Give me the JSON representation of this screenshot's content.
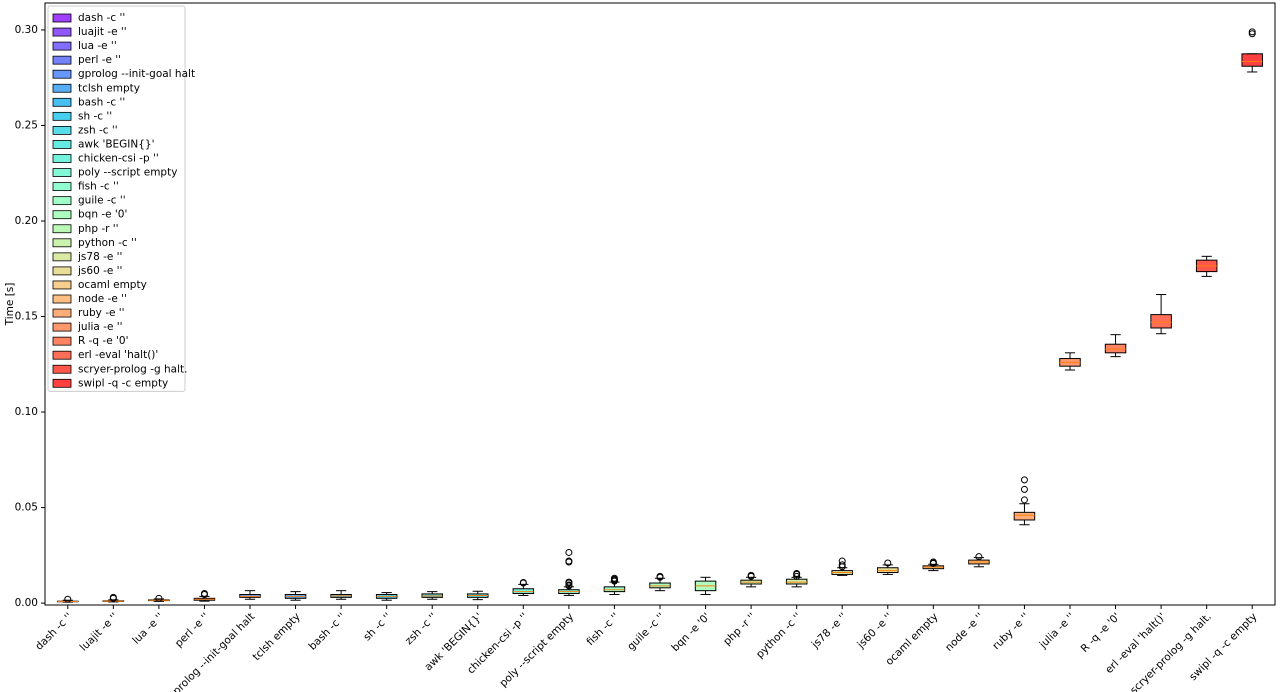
{
  "chart_data": {
    "type": "boxplot",
    "y_label": "Time [s]",
    "ylim": [
      -0.001,
      0.3141
    ],
    "yticks": [
      {
        "value": 0,
        "label": "0.00"
      },
      {
        "value": 0.05,
        "label": "0.05"
      },
      {
        "value": 0.1,
        "label": "0.10"
      },
      {
        "value": 0.15,
        "label": "0.15"
      },
      {
        "value": 0.2,
        "label": "0.20"
      },
      {
        "value": 0.25,
        "label": "0.25"
      },
      {
        "value": 0.3,
        "label": "0.30"
      }
    ],
    "legend": "upper left",
    "median_color": "#ff7f0e",
    "series": [
      {
        "name": "dash -c ''",
        "color": "#8000ff",
        "whislo": 0.0005,
        "q1": 0.0007,
        "med": 0.0008,
        "q3": 0.001,
        "whishi": 0.0015,
        "fliers": [
          0.002
        ]
      },
      {
        "name": "luajit -e ''",
        "color": "#6c1fff",
        "whislo": 0.0006,
        "q1": 0.0009,
        "med": 0.001,
        "q3": 0.0012,
        "whishi": 0.0017,
        "fliers": [
          0.0025,
          0.003
        ]
      },
      {
        "name": "lua -e ''",
        "color": "#583dfd",
        "whislo": 0.0009,
        "q1": 0.0013,
        "med": 0.0015,
        "q3": 0.0017,
        "whishi": 0.0022,
        "fliers": [
          0.0025
        ]
      },
      {
        "name": "perl -e ''",
        "color": "#445af9",
        "whislo": 0.001,
        "q1": 0.0015,
        "med": 0.002,
        "q3": 0.0025,
        "whishi": 0.0035,
        "fliers": [
          0.0045,
          0.005
        ]
      },
      {
        "name": "gprolog --init-goal halt",
        "color": "#3176f8",
        "whislo": 0.002,
        "q1": 0.003,
        "med": 0.0035,
        "q3": 0.0045,
        "whishi": 0.0065,
        "fliers": []
      },
      {
        "name": "tclsh empty",
        "color": "#1d91f3",
        "whislo": 0.0015,
        "q1": 0.0025,
        "med": 0.0035,
        "q3": 0.0045,
        "whishi": 0.006,
        "fliers": []
      },
      {
        "name": "bash -c ''",
        "color": "#0aa9ee",
        "whislo": 0.002,
        "q1": 0.003,
        "med": 0.0038,
        "q3": 0.0045,
        "whishi": 0.0065,
        "fliers": []
      },
      {
        "name": "sh -c ''",
        "color": "#0abfe8",
        "whislo": 0.0015,
        "q1": 0.0025,
        "med": 0.0035,
        "q3": 0.0045,
        "whishi": 0.0055,
        "fliers": []
      },
      {
        "name": "zsh -c ''",
        "color": "#1dd2e2",
        "whislo": 0.002,
        "q1": 0.003,
        "med": 0.0038,
        "q3": 0.0048,
        "whishi": 0.006,
        "fliers": []
      },
      {
        "name": "awk 'BEGIN{}'",
        "color": "#31e2da",
        "whislo": 0.0018,
        "q1": 0.003,
        "med": 0.004,
        "q3": 0.0048,
        "whishi": 0.0062,
        "fliers": []
      },
      {
        "name": "chicken-csi -p ''",
        "color": "#44eed2",
        "whislo": 0.004,
        "q1": 0.005,
        "med": 0.006,
        "q3": 0.0075,
        "whishi": 0.0098,
        "fliers": [
          0.0105,
          0.0108
        ]
      },
      {
        "name": "poly --script empty",
        "color": "#58f7c9",
        "whislo": 0.004,
        "q1": 0.005,
        "med": 0.006,
        "q3": 0.007,
        "whishi": 0.0085,
        "fliers": [
          0.009,
          0.0095,
          0.0105,
          0.011,
          0.0215,
          0.022,
          0.0265
        ]
      },
      {
        "name": "fish -c ''",
        "color": "#6cfdbf",
        "whislo": 0.0045,
        "q1": 0.006,
        "med": 0.007,
        "q3": 0.0085,
        "whishi": 0.011,
        "fliers": [
          0.0115,
          0.012,
          0.0125,
          0.013
        ]
      },
      {
        "name": "guile -c ''",
        "color": "#80ffb4",
        "whislo": 0.0065,
        "q1": 0.008,
        "med": 0.009,
        "q3": 0.0105,
        "whishi": 0.013,
        "fliers": [
          0.0135,
          0.014
        ]
      },
      {
        "name": "bqn -e '0'",
        "color": "#93fda9",
        "whislo": 0.0045,
        "q1": 0.0065,
        "med": 0.009,
        "q3": 0.0115,
        "whishi": 0.0135,
        "fliers": []
      },
      {
        "name": "php -r ''",
        "color": "#a7f79e",
        "whislo": 0.0085,
        "q1": 0.01,
        "med": 0.011,
        "q3": 0.012,
        "whishi": 0.0135,
        "fliers": [
          0.014,
          0.0145
        ]
      },
      {
        "name": "python -c ''",
        "color": "#baee91",
        "whislo": 0.0085,
        "q1": 0.01,
        "med": 0.011,
        "q3": 0.0125,
        "whishi": 0.0135,
        "fliers": [
          0.014,
          0.015,
          0.0155
        ]
      },
      {
        "name": "js78 -e ''",
        "color": "#cee284",
        "whislo": 0.0145,
        "q1": 0.015,
        "med": 0.016,
        "q3": 0.017,
        "whishi": 0.0185,
        "fliers": [
          0.019,
          0.02,
          0.022
        ]
      },
      {
        "name": "js60 -e ''",
        "color": "#e2d276",
        "whislo": 0.015,
        "q1": 0.016,
        "med": 0.017,
        "q3": 0.0185,
        "whishi": 0.02,
        "fliers": [
          0.021
        ]
      },
      {
        "name": "ocaml empty",
        "color": "#f5bf68",
        "whislo": 0.017,
        "q1": 0.018,
        "med": 0.0188,
        "q3": 0.0195,
        "whishi": 0.0203,
        "fliers": [
          0.0207,
          0.021,
          0.0215
        ]
      },
      {
        "name": "node -e ''",
        "color": "#ffa95a",
        "whislo": 0.019,
        "q1": 0.0205,
        "med": 0.0215,
        "q3": 0.0225,
        "whishi": 0.0238,
        "fliers": [
          0.0243
        ]
      },
      {
        "name": "ruby -e ''",
        "color": "#ff914b",
        "whislo": 0.041,
        "q1": 0.0435,
        "med": 0.046,
        "q3": 0.0475,
        "whishi": 0.052,
        "fliers": [
          0.054,
          0.0595,
          0.0645
        ]
      },
      {
        "name": "julia -e ''",
        "color": "#ff763d",
        "whislo": 0.122,
        "q1": 0.124,
        "med": 0.126,
        "q3": 0.128,
        "whishi": 0.131,
        "fliers": []
      },
      {
        "name": "R -q -e '0'",
        "color": "#ff5a2e",
        "whislo": 0.129,
        "q1": 0.131,
        "med": 0.133,
        "q3": 0.1355,
        "whishi": 0.1405,
        "fliers": []
      },
      {
        "name": "erl -eval 'halt()'",
        "color": "#ff3d1f",
        "whislo": 0.141,
        "q1": 0.144,
        "med": 0.147,
        "q3": 0.151,
        "whishi": 0.1615,
        "fliers": []
      },
      {
        "name": "scryer-prolog -g halt.",
        "color": "#ff1f0f",
        "whislo": 0.171,
        "q1": 0.1735,
        "med": 0.1765,
        "q3": 0.1795,
        "whishi": 0.1815,
        "fliers": []
      },
      {
        "name": "swipl -q -c empty",
        "color": "#ff0000",
        "whislo": 0.278,
        "q1": 0.281,
        "med": 0.2835,
        "q3": 0.2875,
        "whishi": 0.2875,
        "fliers": [
          0.298,
          0.299
        ]
      }
    ]
  }
}
